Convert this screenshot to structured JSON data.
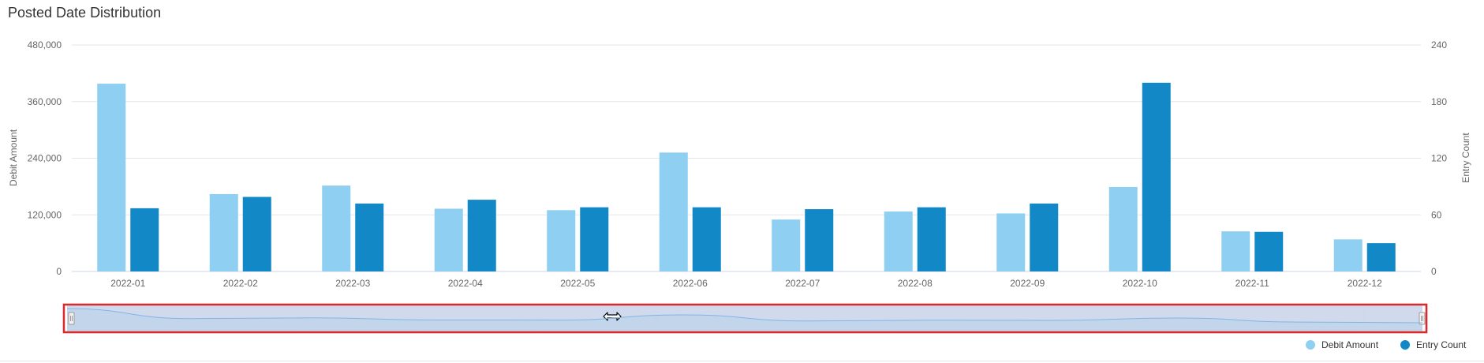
{
  "title": "Posted Date Distribution",
  "chart_data": {
    "type": "bar",
    "categories": [
      "2022-01",
      "2022-02",
      "2022-03",
      "2022-04",
      "2022-05",
      "2022-06",
      "2022-07",
      "2022-08",
      "2022-09",
      "2022-10",
      "2022-11",
      "2022-12"
    ],
    "series": [
      {
        "name": "Debit Amount",
        "axis": "left",
        "color": "#8ecff2",
        "values": [
          398000,
          164000,
          182000,
          133000,
          130000,
          252000,
          110000,
          127000,
          123000,
          179000,
          85000,
          68000
        ]
      },
      {
        "name": "Entry Count",
        "axis": "right",
        "color": "#1288c7",
        "values": [
          67,
          79,
          72,
          76,
          68,
          68,
          66,
          68,
          72,
          200,
          42,
          30
        ]
      }
    ],
    "ylabel_left": "Debit Amount",
    "ylabel_right": "Entry Count",
    "ylim_left": [
      0,
      480000
    ],
    "ylim_right": [
      0,
      240
    ],
    "yticks_left": [
      "0",
      "120,000",
      "240,000",
      "360,000",
      "480,000"
    ],
    "yticks_right": [
      "0",
      "60",
      "120",
      "180",
      "240"
    ],
    "grid": true,
    "legend_position": "bottom-right"
  },
  "navigator": {
    "selection": [
      0,
      1
    ]
  },
  "legend": {
    "items": [
      {
        "label": "Debit Amount",
        "color": "#8ecff2"
      },
      {
        "label": "Entry Count",
        "color": "#1288c7"
      }
    ]
  }
}
